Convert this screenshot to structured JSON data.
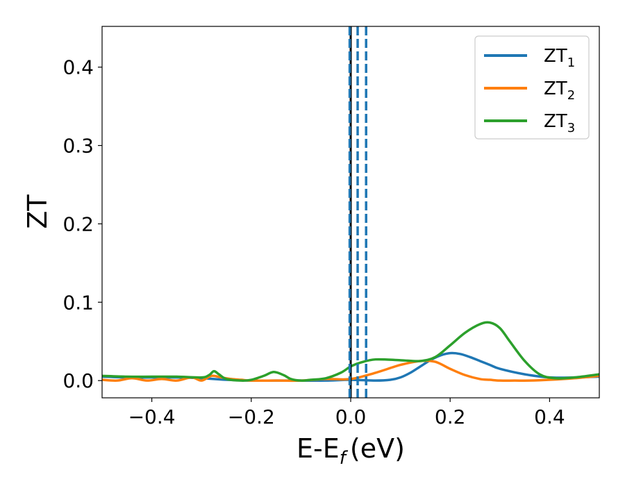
{
  "chart_data": {
    "type": "line",
    "xlabel": "E-E",
    "xlabel_sub": "f",
    "xlabel_unit": "(eV)",
    "ylabel": "ZT",
    "xlim": [
      -0.5,
      0.5
    ],
    "ylim": [
      -0.022,
      0.452
    ],
    "xticks": [
      -0.4,
      -0.2,
      0.0,
      0.2,
      0.4
    ],
    "xtick_labels": [
      "−0.4",
      "−0.2",
      "0.0",
      "0.2",
      "0.4"
    ],
    "yticks": [
      0.0,
      0.1,
      0.2,
      0.3,
      0.4
    ],
    "ytick_labels": [
      "0.0",
      "0.1",
      "0.2",
      "0.3",
      "0.4"
    ],
    "grid": false,
    "legend_position": "top-right",
    "vertical_lines": [
      {
        "x": 0.0,
        "style": "solid",
        "color": "#000000"
      },
      {
        "x": -0.002,
        "style": "dashed",
        "color": "#1f77b4"
      },
      {
        "x": 0.014,
        "style": "dashed",
        "color": "#1f77b4"
      },
      {
        "x": 0.031,
        "style": "dashed",
        "color": "#1f77b4"
      }
    ],
    "series": [
      {
        "name": "ZT",
        "name_sub": "1",
        "color": "#1f77b4",
        "x": [
          -0.5,
          -0.45,
          -0.4,
          -0.35,
          -0.3,
          -0.25,
          -0.2,
          -0.15,
          -0.1,
          -0.05,
          0.0,
          0.05,
          0.08,
          0.1,
          0.12,
          0.14,
          0.16,
          0.18,
          0.2,
          0.22,
          0.24,
          0.26,
          0.28,
          0.3,
          0.35,
          0.4,
          0.45,
          0.5
        ],
        "y": [
          0.005,
          0.004,
          0.004,
          0.004,
          0.003,
          0.001,
          0.0,
          0.0,
          0.0,
          0.0,
          0.001,
          0.0,
          0.001,
          0.004,
          0.01,
          0.018,
          0.026,
          0.032,
          0.035,
          0.034,
          0.03,
          0.025,
          0.02,
          0.015,
          0.008,
          0.004,
          0.004,
          0.005
        ]
      },
      {
        "name": "ZT",
        "name_sub": "2",
        "color": "#ff7f0e",
        "x": [
          -0.5,
          -0.47,
          -0.44,
          -0.41,
          -0.38,
          -0.35,
          -0.32,
          -0.3,
          -0.28,
          -0.26,
          -0.24,
          -0.22,
          -0.2,
          -0.15,
          -0.1,
          -0.05,
          0.0,
          0.05,
          0.1,
          0.14,
          0.17,
          0.2,
          0.23,
          0.26,
          0.28,
          0.3,
          0.33,
          0.36,
          0.4,
          0.45,
          0.5
        ],
        "y": [
          0.001,
          0.0,
          0.003,
          0.0,
          0.002,
          0.0,
          0.004,
          0.0,
          0.006,
          0.004,
          0.002,
          0.001,
          0.0,
          0.0,
          0.0,
          0.002,
          0.002,
          0.01,
          0.02,
          0.025,
          0.024,
          0.015,
          0.007,
          0.002,
          0.001,
          0.0,
          0.0,
          0.0,
          0.001,
          0.003,
          0.006
        ]
      },
      {
        "name": "ZT",
        "name_sub": "3",
        "color": "#2ca02c",
        "x": [
          -0.5,
          -0.45,
          -0.4,
          -0.35,
          -0.3,
          -0.285,
          -0.275,
          -0.265,
          -0.25,
          -0.22,
          -0.2,
          -0.175,
          -0.155,
          -0.135,
          -0.12,
          -0.1,
          -0.08,
          -0.05,
          -0.02,
          0.0,
          0.02,
          0.05,
          0.1,
          0.14,
          0.17,
          0.2,
          0.23,
          0.26,
          0.28,
          0.3,
          0.32,
          0.35,
          0.38,
          0.41,
          0.45,
          0.5
        ],
        "y": [
          0.006,
          0.005,
          0.005,
          0.005,
          0.004,
          0.007,
          0.012,
          0.008,
          0.002,
          0.0,
          0.001,
          0.006,
          0.011,
          0.007,
          0.002,
          0.0,
          0.001,
          0.003,
          0.01,
          0.018,
          0.023,
          0.027,
          0.026,
          0.025,
          0.03,
          0.045,
          0.061,
          0.072,
          0.074,
          0.067,
          0.05,
          0.025,
          0.008,
          0.003,
          0.004,
          0.008
        ]
      }
    ]
  }
}
